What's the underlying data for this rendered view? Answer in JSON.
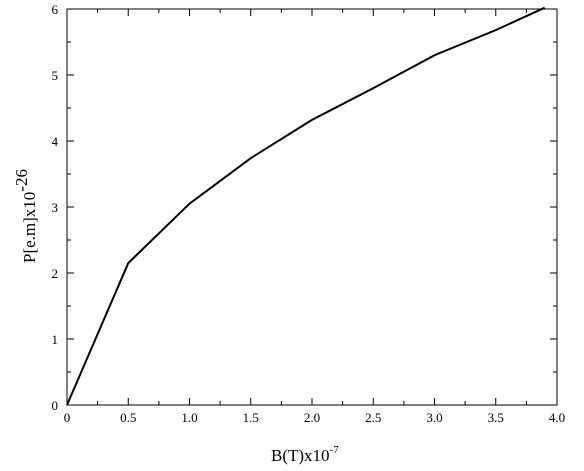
{
  "chart_data": {
    "type": "line",
    "title": "",
    "xlabel": {
      "base": "B(T)x10",
      "sup": "-7"
    },
    "ylabel": {
      "base": "P[e.m]x10",
      "sup": "-26"
    },
    "xlim": [
      0,
      4.0
    ],
    "ylim": [
      0,
      6
    ],
    "x_ticks": [
      0,
      0.5,
      1.0,
      1.5,
      2.0,
      2.5,
      3.0,
      3.5,
      4.0
    ],
    "x_tick_labels": [
      "0",
      "0.5",
      "1.0",
      "1.5",
      "2.0",
      "2.5",
      "3.0",
      "3.5",
      "4.0"
    ],
    "y_ticks": [
      0,
      1,
      2,
      3,
      4,
      5,
      6
    ],
    "y_tick_labels": [
      "0",
      "1",
      "2",
      "3",
      "4",
      "5",
      "6"
    ],
    "grid": false,
    "series": [
      {
        "x": [
          0,
          0.5,
          1.0,
          1.5,
          2.0,
          2.5,
          3.0,
          3.5,
          3.9
        ],
        "y": [
          0,
          2.15,
          3.05,
          3.74,
          4.32,
          4.8,
          5.3,
          5.68,
          6.02
        ]
      }
    ]
  }
}
